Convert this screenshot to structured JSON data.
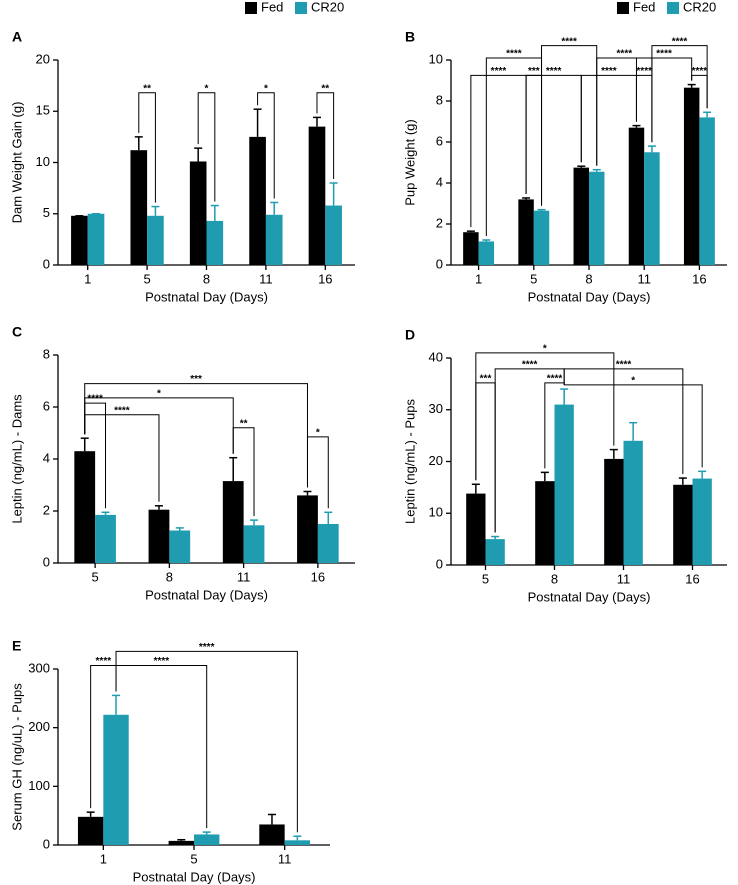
{
  "chart_data": [
    {
      "type": "bar",
      "panel": "A",
      "ylabel": "Dam Weight Gain (g)",
      "xlabel": "Postnatal Day (Days)",
      "categories": [
        "1",
        "5",
        "8",
        "11",
        "16"
      ],
      "legend": true,
      "series": [
        {
          "name": "Fed",
          "color": "#000000",
          "values": [
            4.8,
            11.2,
            10.1,
            12.5,
            13.5
          ],
          "errors": [
            0,
            1.3,
            1.3,
            2.7,
            0.9
          ]
        },
        {
          "name": "CR20",
          "color": "#1f9cb0",
          "values": [
            5.0,
            4.8,
            4.3,
            4.9,
            5.8
          ],
          "errors": [
            0,
            0.9,
            1.5,
            1.2,
            2.2
          ]
        }
      ],
      "ylim": [
        0,
        20
      ],
      "yticks": [
        0,
        5,
        10,
        15,
        20
      ],
      "brackets": [
        {
          "label": "**",
          "from": [
            0,
            1
          ],
          "to": [
            1,
            1
          ],
          "y": 16.8
        },
        {
          "label": "*",
          "from": [
            0,
            2
          ],
          "to": [
            1,
            2
          ],
          "y": 16.8
        },
        {
          "label": "*",
          "from": [
            0,
            3
          ],
          "to": [
            1,
            3
          ],
          "y": 16.8
        },
        {
          "label": "**",
          "from": [
            0,
            4
          ],
          "to": [
            1,
            4
          ],
          "y": 16.8
        }
      ]
    },
    {
      "type": "bar",
      "panel": "B",
      "ylabel": "Pup Weight (g)",
      "xlabel": "Postnatal Day (Days)",
      "categories": [
        "1",
        "5",
        "8",
        "11",
        "16"
      ],
      "legend": true,
      "series": [
        {
          "name": "Fed",
          "color": "#000000",
          "values": [
            1.6,
            3.2,
            4.75,
            6.7,
            8.65
          ],
          "errors": [
            0.05,
            0.07,
            0.07,
            0.1,
            0.15
          ]
        },
        {
          "name": "CR20",
          "color": "#1f9cb0",
          "values": [
            1.15,
            2.65,
            4.55,
            5.5,
            7.2
          ],
          "errors": [
            0.07,
            0.05,
            0.1,
            0.3,
            0.25
          ]
        }
      ],
      "ylim": [
        0,
        10
      ],
      "yticks": [
        0,
        2,
        4,
        6,
        8,
        10
      ],
      "brackets": [
        {
          "label": "****",
          "from": [
            0,
            0
          ],
          "to": [
            0,
            1
          ],
          "y": 9.25
        },
        {
          "label": "***",
          "from": [
            0,
            1
          ],
          "to": [
            1,
            1
          ],
          "y": 9.25
        },
        {
          "label": "****",
          "from": [
            0,
            1
          ],
          "to": [
            0,
            2
          ],
          "y": 9.25
        },
        {
          "label": "****",
          "from": [
            0,
            2
          ],
          "to": [
            0,
            3
          ],
          "y": 9.25
        },
        {
          "label": "****",
          "from": [
            0,
            3
          ],
          "to": [
            1,
            3
          ],
          "y": 9.25
        },
        {
          "label": "****",
          "from": [
            0,
            4
          ],
          "to": [
            1,
            4
          ],
          "y": 9.25
        },
        {
          "label": "****",
          "from": [
            1,
            0
          ],
          "to": [
            1,
            1
          ],
          "y": 10.1
        },
        {
          "label": "****",
          "from": [
            1,
            2
          ],
          "to": [
            1,
            3
          ],
          "y": 10.1
        },
        {
          "label": "****",
          "from": [
            0,
            3
          ],
          "to": [
            0,
            4
          ],
          "y": 10.1
        },
        {
          "label": "****",
          "from": [
            1,
            1
          ],
          "to": [
            1,
            2
          ],
          "y": 10.7
        },
        {
          "label": "****",
          "from": [
            1,
            3
          ],
          "to": [
            1,
            4
          ],
          "y": 10.7
        }
      ]
    },
    {
      "type": "bar",
      "panel": "C",
      "ylabel": "Leptin (ng/mL) - Dams",
      "xlabel": "Postnatal Day (Days)",
      "categories": [
        "5",
        "8",
        "11",
        "16"
      ],
      "series": [
        {
          "color": "#000000",
          "values": [
            4.3,
            2.05,
            3.15,
            2.6
          ],
          "errors": [
            0.5,
            0.15,
            0.9,
            0.15
          ]
        },
        {
          "color": "#1f9cb0",
          "values": [
            1.85,
            1.25,
            1.45,
            1.5
          ],
          "errors": [
            0.1,
            0.1,
            0.2,
            0.45
          ]
        }
      ],
      "ylim": [
        0,
        8
      ],
      "yticks": [
        0,
        2,
        4,
        6,
        8
      ],
      "brackets": [
        {
          "label": "****",
          "from": [
            0,
            0
          ],
          "to": [
            1,
            0
          ],
          "y": 6.15
        },
        {
          "label": "****",
          "from": [
            0,
            0
          ],
          "to": [
            0,
            1
          ],
          "y": 5.7
        },
        {
          "label": "*",
          "from": [
            0,
            0
          ],
          "to": [
            0,
            2
          ],
          "y": 6.35
        },
        {
          "label": "***",
          "from": [
            0,
            0
          ],
          "to": [
            0,
            3
          ],
          "y": 6.9
        },
        {
          "label": "**",
          "from": [
            0,
            2
          ],
          "to": [
            1,
            2
          ],
          "y": 5.2
        },
        {
          "label": "*",
          "from": [
            0,
            3
          ],
          "to": [
            1,
            3
          ],
          "y": 4.85
        }
      ]
    },
    {
      "type": "bar",
      "panel": "D",
      "ylabel": "Leptin (ng/mL) - Pups",
      "xlabel": "Postnatal Day (Days)",
      "categories": [
        "5",
        "8",
        "11",
        "16"
      ],
      "series": [
        {
          "color": "#000000",
          "values": [
            13.8,
            16.2,
            20.5,
            15.5
          ],
          "errors": [
            1.8,
            1.7,
            1.8,
            1.3
          ]
        },
        {
          "color": "#1f9cb0",
          "values": [
            5,
            31,
            24,
            16.7
          ],
          "errors": [
            0.5,
            3,
            3.5,
            1.4
          ]
        }
      ],
      "ylim": [
        0,
        40
      ],
      "yticks": [
        0,
        10,
        20,
        30,
        40
      ],
      "brackets": [
        {
          "label": "***",
          "from": [
            0,
            0
          ],
          "to": [
            1,
            0
          ],
          "y": 35.2
        },
        {
          "label": "****",
          "from": [
            1,
            0
          ],
          "to": [
            1,
            1
          ],
          "y": 37.9
        },
        {
          "label": "*",
          "from": [
            0,
            0
          ],
          "to": [
            0,
            2
          ],
          "y": 41
        },
        {
          "label": "****",
          "from": [
            0,
            1
          ],
          "to": [
            1,
            1
          ],
          "y": 35.2
        },
        {
          "label": "****",
          "from": [
            1,
            1
          ],
          "to": [
            0,
            3
          ],
          "y": 37.9
        },
        {
          "label": "*",
          "from": [
            1,
            1
          ],
          "to": [
            1,
            3
          ],
          "y": 34.8
        }
      ]
    },
    {
      "type": "bar",
      "panel": "E",
      "ylabel": "Serum GH (ng/uL) - Pups",
      "xlabel": "Postnatal Day (Days)",
      "categories": [
        "1",
        "5",
        "11"
      ],
      "series": [
        {
          "color": "#000000",
          "values": [
            48,
            7,
            35
          ],
          "errors": [
            8,
            2,
            17
          ]
        },
        {
          "color": "#1f9cb0",
          "values": [
            222,
            18,
            8
          ],
          "errors": [
            33,
            4,
            7
          ]
        }
      ],
      "ylim": [
        0,
        300
      ],
      "yticks": [
        0,
        100,
        200,
        300
      ],
      "brackets": [
        {
          "label": "****",
          "from": [
            0,
            0
          ],
          "to": [
            1,
            0
          ],
          "y": 306
        },
        {
          "label": "****",
          "from": [
            1,
            0
          ],
          "to": [
            1,
            1
          ],
          "y": 306
        },
        {
          "label": "****",
          "from": [
            1,
            0
          ],
          "to": [
            1,
            2
          ],
          "y": 330
        }
      ]
    }
  ]
}
